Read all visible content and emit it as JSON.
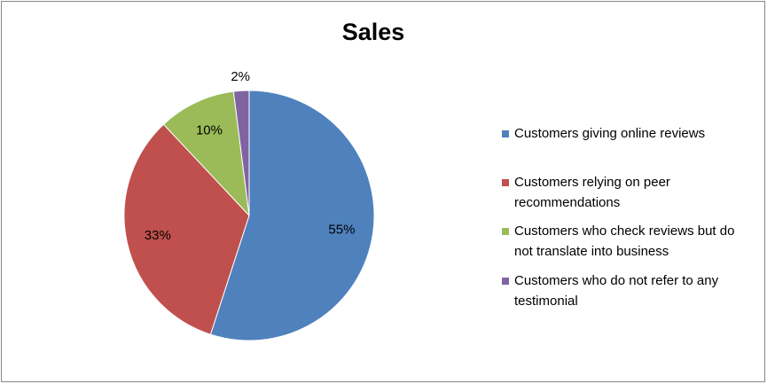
{
  "chart_data": {
    "type": "pie",
    "title": "Sales",
    "categories": [
      "Customers giving online reviews",
      "Customers relying on peer recommendations",
      "Customers who check reviews but do not translate into business",
      "Customers who do not refer to any testimonial"
    ],
    "values": [
      55,
      33,
      10,
      2
    ],
    "value_labels": [
      "55%",
      "33%",
      "10%",
      "2%"
    ],
    "colors": [
      "#4f81bd",
      "#c0504d",
      "#9bbb59",
      "#8064a2"
    ],
    "legend": "right"
  }
}
